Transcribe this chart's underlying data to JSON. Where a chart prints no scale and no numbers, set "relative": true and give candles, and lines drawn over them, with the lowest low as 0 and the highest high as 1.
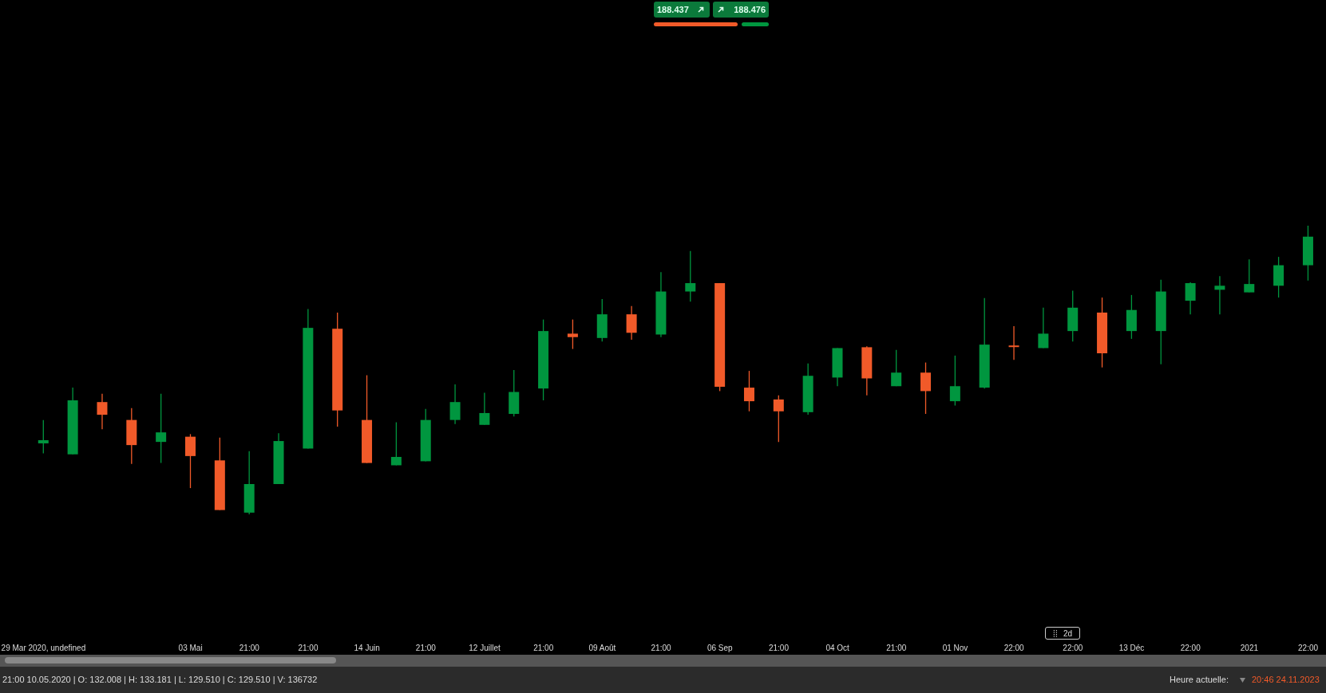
{
  "chart_data": {
    "type": "candlestick",
    "relative": true,
    "categories": [
      "29 Mar 2020, undefined",
      null,
      null,
      null,
      null,
      "03 Mai",
      null,
      "21:00",
      null,
      "21:00",
      null,
      "14 Juin",
      null,
      "21:00",
      null,
      "12 Juillet",
      null,
      "21:00",
      null,
      "09 Août",
      null,
      "21:00",
      null,
      "06 Sep",
      null,
      "21:00",
      null,
      "04 Oct",
      null,
      "21:00",
      null,
      "01 Nov",
      null,
      "22:00",
      null,
      "22:00",
      null,
      "13 Déc",
      null,
      "22:00",
      null,
      "2021",
      null,
      "22:00"
    ],
    "ohlc": [
      [
        0.246,
        0.327,
        0.211,
        0.257
      ],
      [
        0.208,
        0.439,
        0.208,
        0.395
      ],
      [
        0.389,
        0.418,
        0.295,
        0.345
      ],
      [
        0.327,
        0.368,
        0.175,
        0.24
      ],
      [
        0.251,
        0.418,
        0.178,
        0.284
      ],
      [
        0.269,
        0.278,
        0.091,
        0.202
      ],
      [
        0.187,
        0.266,
        0.015,
        0.015
      ],
      [
        0.006,
        0.219,
        0,
        0.105
      ],
      [
        0.105,
        0.281,
        0.105,
        0.254
      ],
      [
        0.228,
        0.711,
        0.228,
        0.646
      ],
      [
        0.643,
        0.699,
        0.304,
        0.36
      ],
      [
        0.327,
        0.482,
        0.178,
        0.178
      ],
      [
        0.17,
        0.319,
        0.17,
        0.199
      ],
      [
        0.184,
        0.365,
        0.184,
        0.327
      ],
      [
        0.327,
        0.45,
        0.313,
        0.389
      ],
      [
        0.31,
        0.421,
        0.31,
        0.351
      ],
      [
        0.348,
        0.5,
        0.339,
        0.424
      ],
      [
        0.436,
        0.675,
        0.395,
        0.635
      ],
      [
        0.626,
        0.675,
        0.573,
        0.614
      ],
      [
        0.611,
        0.746,
        0.599,
        0.693
      ],
      [
        0.693,
        0.722,
        0.605,
        0.629
      ],
      [
        0.623,
        0.839,
        0.614,
        0.772
      ],
      [
        0.772,
        0.912,
        0.737,
        0.801
      ],
      [
        0.801,
        0.801,
        0.427,
        0.442
      ],
      [
        0.439,
        0.497,
        0.357,
        0.392
      ],
      [
        0.398,
        0.412,
        0.251,
        0.357
      ],
      [
        0.354,
        0.523,
        0.345,
        0.48
      ],
      [
        0.474,
        0.576,
        0.444,
        0.576
      ],
      [
        0.579,
        0.582,
        0.412,
        0.471
      ],
      [
        0.444,
        0.57,
        0.444,
        0.491
      ],
      [
        0.491,
        0.526,
        0.348,
        0.427
      ],
      [
        0.392,
        0.55,
        0.377,
        0.444
      ],
      [
        0.439,
        0.749,
        0.436,
        0.588
      ],
      [
        0.585,
        0.652,
        0.535,
        0.582
      ],
      [
        0.576,
        0.716,
        0.576,
        0.626
      ],
      [
        0.635,
        0.775,
        0.599,
        0.716
      ],
      [
        0.699,
        0.751,
        0.509,
        0.558
      ],
      [
        0.635,
        0.76,
        0.608,
        0.708
      ],
      [
        0.635,
        0.813,
        0.52,
        0.772
      ],
      [
        0.74,
        0.804,
        0.693,
        0.801
      ],
      [
        0.778,
        0.825,
        0.693,
        0.792
      ],
      [
        0.769,
        0.883,
        0.769,
        0.798
      ],
      [
        0.792,
        0.892,
        0.751,
        0.863
      ],
      [
        0.863,
        1,
        0.81,
        0.962
      ]
    ],
    "colors": [
      "#00963f",
      "#00963f",
      "#f15a29",
      "#f15a29",
      "#00963f",
      "#f15a29",
      "#f15a29",
      "#00963f",
      "#00963f",
      "#00963f",
      "#f15a29",
      "#f15a29",
      "#00963f",
      "#00963f",
      "#00963f",
      "#00963f",
      "#00963f",
      "#00963f",
      "#f15a29",
      "#00963f",
      "#f15a29",
      "#00963f",
      "#00963f",
      "#f15a29",
      "#f15a29",
      "#f15a29",
      "#00963f",
      "#00963f",
      "#f15a29",
      "#00963f",
      "#f15a29",
      "#00963f",
      "#00963f",
      "#f15a29",
      "#00963f",
      "#00963f",
      "#f15a29",
      "#00963f",
      "#00963f",
      "#00963f",
      "#00963f",
      "#00963f",
      "#00963f",
      "#00963f"
    ],
    "annotations": [
      "188.437",
      "188.476",
      "2d",
      "21:00 10.05.2020 | O: 132.008 | H: 133.181 | L: 129.510 | C: 129.510 | V: 136732",
      "Heure actuelle:",
      "20:46 24.11.2023"
    ]
  }
}
